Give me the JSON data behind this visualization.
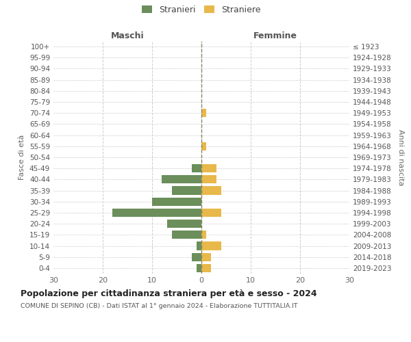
{
  "age_groups": [
    "0-4",
    "5-9",
    "10-14",
    "15-19",
    "20-24",
    "25-29",
    "30-34",
    "35-39",
    "40-44",
    "45-49",
    "50-54",
    "55-59",
    "60-64",
    "65-69",
    "70-74",
    "75-79",
    "80-84",
    "85-89",
    "90-94",
    "95-99",
    "100+"
  ],
  "birth_years": [
    "2019-2023",
    "2014-2018",
    "2009-2013",
    "2004-2008",
    "1999-2003",
    "1994-1998",
    "1989-1993",
    "1984-1988",
    "1979-1983",
    "1974-1978",
    "1969-1973",
    "1964-1968",
    "1959-1963",
    "1954-1958",
    "1949-1953",
    "1944-1948",
    "1939-1943",
    "1934-1938",
    "1929-1933",
    "1924-1928",
    "≤ 1923"
  ],
  "males": [
    1,
    2,
    1,
    6,
    7,
    18,
    10,
    6,
    8,
    2,
    0,
    0,
    0,
    0,
    0,
    0,
    0,
    0,
    0,
    0,
    0
  ],
  "females": [
    2,
    2,
    4,
    1,
    0,
    4,
    0,
    4,
    3,
    3,
    0,
    1,
    0,
    0,
    1,
    0,
    0,
    0,
    0,
    0,
    0
  ],
  "male_color": "#6b8e5a",
  "female_color": "#e8b84b",
  "center_line_color": "#888866",
  "title": "Popolazione per cittadinanza straniera per età e sesso - 2024",
  "subtitle": "COMUNE DI SEPINO (CB) - Dati ISTAT al 1° gennaio 2024 - Elaborazione TUTTITALIA.IT",
  "xlabel_left": "Maschi",
  "xlabel_right": "Femmine",
  "ylabel_left": "Fasce di età",
  "ylabel_right": "Anni di nascita",
  "legend_male": "Stranieri",
  "legend_female": "Straniere",
  "xlim": 30,
  "background_color": "#ffffff",
  "grid_color": "#cccccc"
}
